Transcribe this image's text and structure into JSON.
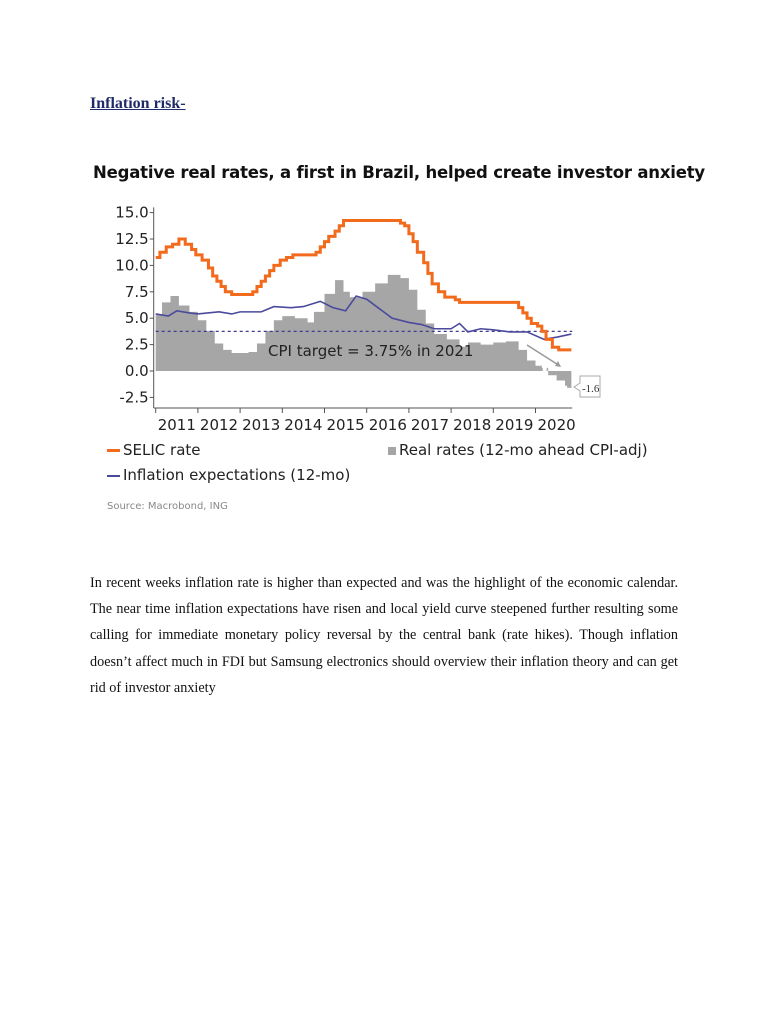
{
  "heading": "Inflation risk-",
  "chart_data": {
    "type": "line",
    "title": "Negative real rates, a first in Brazil, helped create investor anxiety",
    "xlabel": "",
    "ylabel": "",
    "x_tick_labels": [
      "2011",
      "2012",
      "2013",
      "2014",
      "2015",
      "2016",
      "2017",
      "2018",
      "2019",
      "2020"
    ],
    "y_tick_labels": [
      "15.0",
      "12.5",
      "10.0",
      "7.5",
      "5.0",
      "2.5",
      "0.0",
      "-2.5"
    ],
    "y_ticks": [
      15,
      12.5,
      10,
      7.5,
      5,
      2.5,
      0,
      -2.5
    ],
    "xlim": [
      2011.0,
      2020.87
    ],
    "ylim": [
      -3.5,
      15.5
    ],
    "grid": false,
    "legend_position": "bottom",
    "reference_line": {
      "value": 3.75,
      "label": "CPI target = 3.75% in 2021",
      "style": "dashed",
      "color": "#3d3c8f"
    },
    "annotation": {
      "label": "-1.6",
      "value": -1.6
    },
    "series": [
      {
        "name": "SELIC rate",
        "type": "step-line",
        "color": "#f26b1d",
        "points": [
          [
            2011.0,
            10.75
          ],
          [
            2011.1,
            11.25
          ],
          [
            2011.25,
            11.75
          ],
          [
            2011.4,
            12.0
          ],
          [
            2011.55,
            12.5
          ],
          [
            2011.7,
            12.0
          ],
          [
            2011.85,
            11.5
          ],
          [
            2011.95,
            11.0
          ],
          [
            2012.1,
            10.5
          ],
          [
            2012.25,
            9.75
          ],
          [
            2012.35,
            9.0
          ],
          [
            2012.45,
            8.5
          ],
          [
            2012.55,
            8.0
          ],
          [
            2012.65,
            7.5
          ],
          [
            2012.8,
            7.25
          ],
          [
            2013.3,
            7.5
          ],
          [
            2013.4,
            8.0
          ],
          [
            2013.5,
            8.5
          ],
          [
            2013.6,
            9.0
          ],
          [
            2013.7,
            9.5
          ],
          [
            2013.8,
            10.0
          ],
          [
            2013.95,
            10.5
          ],
          [
            2014.1,
            10.75
          ],
          [
            2014.25,
            11.0
          ],
          [
            2014.8,
            11.25
          ],
          [
            2014.9,
            11.75
          ],
          [
            2015.0,
            12.25
          ],
          [
            2015.1,
            12.75
          ],
          [
            2015.25,
            13.25
          ],
          [
            2015.35,
            13.75
          ],
          [
            2015.45,
            14.25
          ],
          [
            2016.8,
            14.0
          ],
          [
            2016.9,
            13.75
          ],
          [
            2017.0,
            13.0
          ],
          [
            2017.1,
            12.25
          ],
          [
            2017.2,
            11.25
          ],
          [
            2017.35,
            10.25
          ],
          [
            2017.45,
            9.25
          ],
          [
            2017.55,
            8.25
          ],
          [
            2017.7,
            7.5
          ],
          [
            2017.85,
            7.0
          ],
          [
            2018.1,
            6.75
          ],
          [
            2018.2,
            6.5
          ],
          [
            2019.6,
            6.0
          ],
          [
            2019.7,
            5.5
          ],
          [
            2019.8,
            5.0
          ],
          [
            2019.9,
            4.5
          ],
          [
            2020.05,
            4.25
          ],
          [
            2020.15,
            3.75
          ],
          [
            2020.25,
            3.0
          ],
          [
            2020.4,
            2.25
          ],
          [
            2020.55,
            2.0
          ],
          [
            2020.85,
            2.0
          ]
        ]
      },
      {
        "name": "Real rates (12-mo ahead CPI-adj)",
        "type": "area",
        "color": "#a6a6a6",
        "points": [
          [
            2011.0,
            5.3
          ],
          [
            2011.15,
            6.5
          ],
          [
            2011.35,
            7.1
          ],
          [
            2011.55,
            6.2
          ],
          [
            2011.8,
            5.6
          ],
          [
            2012.0,
            4.8
          ],
          [
            2012.2,
            3.8
          ],
          [
            2012.4,
            2.6
          ],
          [
            2012.6,
            2.0
          ],
          [
            2012.8,
            1.7
          ],
          [
            2013.0,
            1.7
          ],
          [
            2013.2,
            1.8
          ],
          [
            2013.4,
            2.6
          ],
          [
            2013.6,
            3.8
          ],
          [
            2013.8,
            4.8
          ],
          [
            2014.0,
            5.2
          ],
          [
            2014.3,
            5.0
          ],
          [
            2014.6,
            4.6
          ],
          [
            2014.75,
            5.6
          ],
          [
            2015.0,
            7.3
          ],
          [
            2015.25,
            8.6
          ],
          [
            2015.45,
            7.5
          ],
          [
            2015.6,
            7.0
          ],
          [
            2015.9,
            7.5
          ],
          [
            2016.2,
            8.3
          ],
          [
            2016.5,
            9.1
          ],
          [
            2016.8,
            8.8
          ],
          [
            2017.0,
            7.7
          ],
          [
            2017.2,
            5.8
          ],
          [
            2017.4,
            4.5
          ],
          [
            2017.6,
            3.5
          ],
          [
            2017.9,
            3.0
          ],
          [
            2018.2,
            2.3
          ],
          [
            2018.4,
            2.7
          ],
          [
            2018.7,
            2.5
          ],
          [
            2019.0,
            2.7
          ],
          [
            2019.3,
            2.8
          ],
          [
            2019.6,
            2.0
          ],
          [
            2019.8,
            1.0
          ],
          [
            2020.0,
            0.5
          ],
          [
            2020.15,
            0.3
          ],
          [
            2020.3,
            -0.4
          ],
          [
            2020.5,
            -0.9
          ],
          [
            2020.7,
            -1.4
          ],
          [
            2020.75,
            -1.6
          ]
        ]
      },
      {
        "name": "Inflation expectations (12-mo)",
        "type": "line",
        "color": "#4b4a9c",
        "points": [
          [
            2011.0,
            5.4
          ],
          [
            2011.3,
            5.2
          ],
          [
            2011.5,
            5.7
          ],
          [
            2011.8,
            5.5
          ],
          [
            2012.0,
            5.4
          ],
          [
            2012.5,
            5.6
          ],
          [
            2012.8,
            5.4
          ],
          [
            2013.0,
            5.6
          ],
          [
            2013.5,
            5.6
          ],
          [
            2013.8,
            6.1
          ],
          [
            2014.2,
            6.0
          ],
          [
            2014.5,
            6.1
          ],
          [
            2014.9,
            6.6
          ],
          [
            2015.2,
            6.0
          ],
          [
            2015.5,
            5.7
          ],
          [
            2015.75,
            7.1
          ],
          [
            2016.0,
            6.8
          ],
          [
            2016.3,
            5.9
          ],
          [
            2016.6,
            5.0
          ],
          [
            2017.0,
            4.6
          ],
          [
            2017.3,
            4.4
          ],
          [
            2017.6,
            4.0
          ],
          [
            2018.0,
            4.0
          ],
          [
            2018.2,
            4.5
          ],
          [
            2018.4,
            3.7
          ],
          [
            2018.7,
            4.0
          ],
          [
            2019.0,
            3.9
          ],
          [
            2019.4,
            3.7
          ],
          [
            2019.8,
            3.7
          ],
          [
            2020.2,
            3.0
          ],
          [
            2020.5,
            3.2
          ],
          [
            2020.85,
            3.5
          ]
        ]
      }
    ]
  },
  "source": "Source: Macrobond, ING",
  "body": "In recent weeks inflation rate is higher than expected and was the highlight of the economic calendar. The near time inflation expectations have risen and local yield curve steepened further resulting some calling for immediate monetary policy reversal by the central bank (rate hikes). Though inflation doesn’t affect much in FDI but Samsung electronics should overview their inflation theory and can get rid of investor anxiety"
}
